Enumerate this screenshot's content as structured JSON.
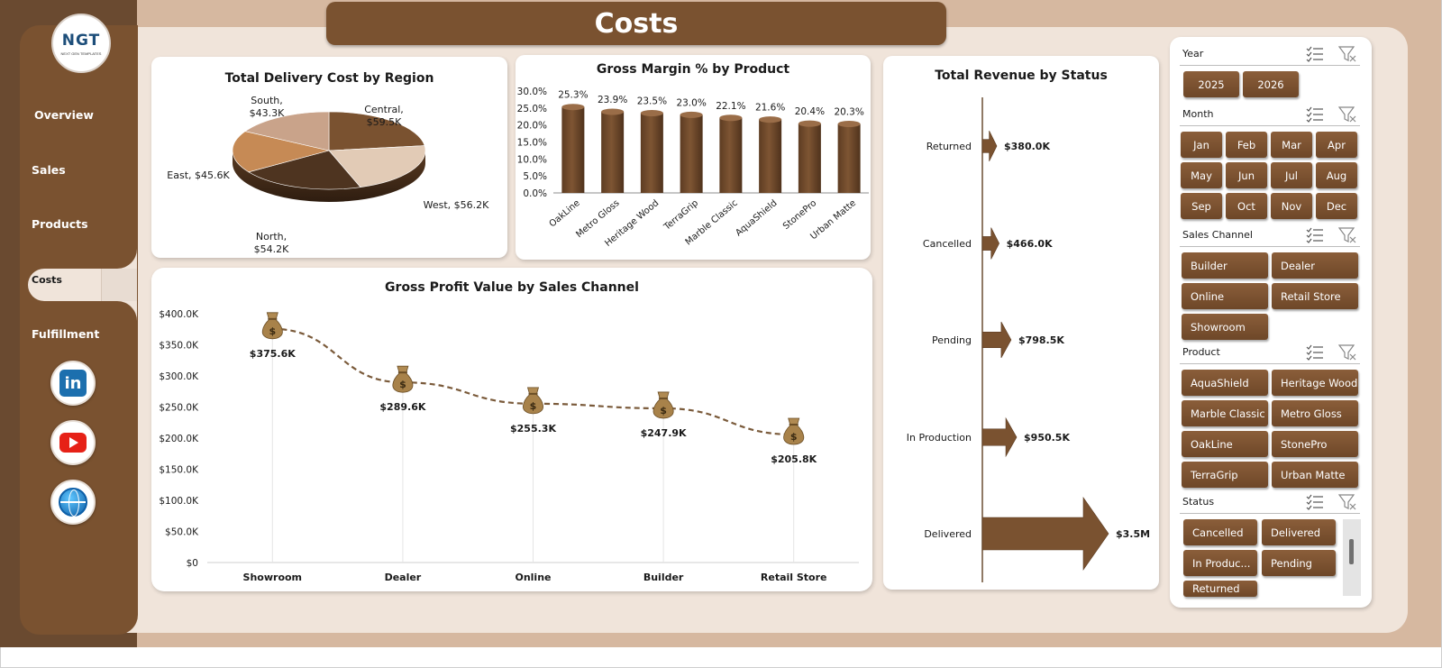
{
  "page_title": "Costs",
  "logo": {
    "text": "NGT",
    "sub": "NEXT GEN TEMPLATES"
  },
  "nav": {
    "items": [
      {
        "label": "Overview"
      },
      {
        "label": "Sales"
      },
      {
        "label": "Products"
      },
      {
        "label": "Costs",
        "active": true
      },
      {
        "label": "Fulfillment"
      }
    ]
  },
  "social": [
    "linkedin-icon",
    "youtube-icon",
    "globe-icon"
  ],
  "colors": {
    "brown": "#7a5230",
    "tan": "#d6b8a0",
    "panel": "#f0e4da"
  },
  "charts": {
    "delivery": {
      "title": "Total Delivery Cost by Region",
      "chart_data": {
        "type": "pie",
        "categories": [
          "Central",
          "West",
          "North",
          "East",
          "South"
        ],
        "values": [
          59.5,
          56.2,
          54.2,
          45.6,
          43.3
        ],
        "labels": [
          {
            "name": "Central,",
            "value": "$59.5K"
          },
          {
            "name": "West,",
            "value": "$56.2K"
          },
          {
            "name": "North,",
            "value": "$54.2K"
          },
          {
            "name": "East,",
            "value": "$45.6K"
          },
          {
            "name": "South,",
            "value": "$43.3K"
          }
        ],
        "colors": [
          "#7a5230",
          "#e2cbb6",
          "#4e3420",
          "#c68a55",
          "#c9a38a"
        ]
      }
    },
    "margin": {
      "title": "Gross Margin % by Product",
      "chart_data": {
        "type": "bar",
        "categories": [
          "OakLine",
          "Metro Gloss",
          "Heritage Wood",
          "TerraGrip",
          "Marble Classic",
          "AquaShield",
          "StonePro",
          "Urban Matte"
        ],
        "values": [
          25.3,
          23.9,
          23.5,
          23.0,
          22.1,
          21.6,
          20.4,
          20.3
        ],
        "data_labels": [
          "25.3%",
          "23.9%",
          "23.5%",
          "23.0%",
          "22.1%",
          "21.6%",
          "20.4%",
          "20.3%"
        ],
        "ylim": [
          0,
          30
        ],
        "yticks": [
          "0.0%",
          "5.0%",
          "10.0%",
          "15.0%",
          "20.0%",
          "25.0%",
          "30.0%"
        ]
      }
    },
    "profit": {
      "title": "Gross Profit Value by Sales Channel",
      "chart_data": {
        "type": "line",
        "categories": [
          "Showroom",
          "Dealer",
          "Online",
          "Builder",
          "Retail Store"
        ],
        "values": [
          375.6,
          289.6,
          255.3,
          247.9,
          205.8
        ],
        "data_labels": [
          "$375.6K",
          "$289.6K",
          "$255.3K",
          "$247.9K",
          "$205.8K"
        ],
        "ylim": [
          0,
          400
        ],
        "yticks": [
          "$0",
          "$50.0K",
          "$100.0K",
          "$150.0K",
          "$200.0K",
          "$250.0K",
          "$300.0K",
          "$350.0K",
          "$400.0K"
        ],
        "marker": "money-bag-icon"
      }
    },
    "revenue": {
      "title": "Total Revenue  by Status",
      "chart_data": {
        "type": "bar",
        "orientation": "horizontal",
        "categories": [
          "Returned",
          "Cancelled",
          "Pending",
          "In Production",
          "Delivered"
        ],
        "values": [
          380.0,
          466.0,
          798.5,
          950.5,
          3500.0
        ],
        "data_labels": [
          "$380.0K",
          "$466.0K",
          "$798.5K",
          "$950.5K",
          "$3.5M"
        ],
        "unit": "K"
      }
    }
  },
  "slicers": {
    "year": {
      "label": "Year",
      "items": [
        "2025",
        "2026"
      ]
    },
    "month": {
      "label": "Month",
      "items": [
        "Jan",
        "Feb",
        "Mar",
        "Apr",
        "May",
        "Jun",
        "Jul",
        "Aug",
        "Sep",
        "Oct",
        "Nov",
        "Dec"
      ]
    },
    "channel": {
      "label": "Sales Channel",
      "items": [
        "Builder",
        "Dealer",
        "Online",
        "Retail Store",
        "Showroom"
      ]
    },
    "product": {
      "label": "Product",
      "items": [
        "AquaShield",
        "Heritage Wood",
        "Marble Classic",
        "Metro Gloss",
        "OakLine",
        "StonePro",
        "TerraGrip",
        "Urban Matte"
      ]
    },
    "status": {
      "label": "Status",
      "items": [
        "Cancelled",
        "Delivered",
        "In Produc...",
        "Pending",
        "Returned"
      ]
    }
  }
}
